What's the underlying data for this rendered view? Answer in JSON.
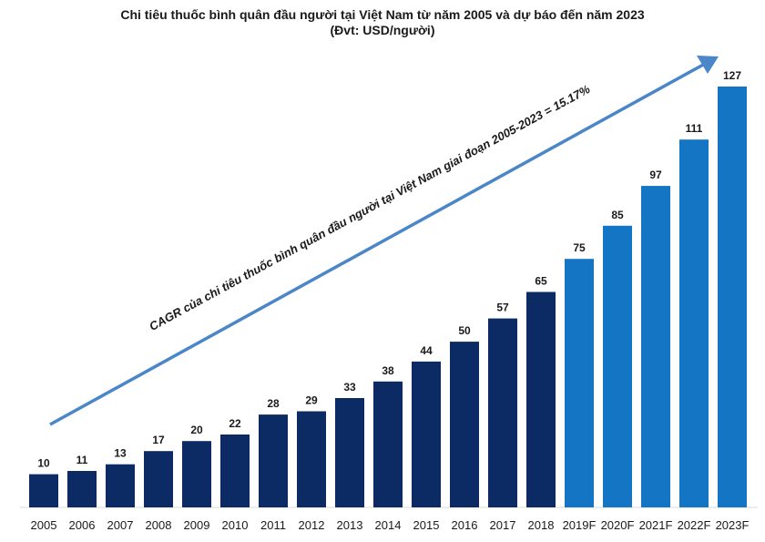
{
  "chart_data": {
    "type": "bar",
    "title": "Chi tiêu thuốc bình quân đầu người tại Việt Nam từ năm 2005  và dự báo đến năm 2023",
    "subtitle": "(Đvt:  USD/người)",
    "categories": [
      "2005",
      "2006",
      "2007",
      "2008",
      "2009",
      "2010",
      "2011",
      "2012",
      "2013",
      "2014",
      "2015",
      "2016",
      "2017",
      "2018",
      "2019F",
      "2020F",
      "2021F",
      "2022F",
      "2023F"
    ],
    "values": [
      10,
      11,
      13,
      17,
      20,
      22,
      28,
      29,
      33,
      38,
      44,
      50,
      57,
      65,
      75,
      85,
      97,
      111,
      127
    ],
    "data_labels": [
      "10",
      "11",
      "13",
      "17",
      "20",
      "22",
      "28",
      "29",
      "33",
      "38",
      "44",
      "50",
      "57",
      "65",
      "75",
      "85",
      "97",
      "111",
      "127"
    ],
    "ylim": [
      0,
      132
    ],
    "grid": false,
    "annotation": "CAGR  của chi tiêu thuốc bình quân đầu người tại Việt Nam giai đoạn 2005-2023 = 15.17%",
    "colors": {
      "actual": "#0c2a63",
      "forecast": "#1375c4",
      "arrow": "#4a86c8",
      "text": "#1a1a1a"
    }
  }
}
